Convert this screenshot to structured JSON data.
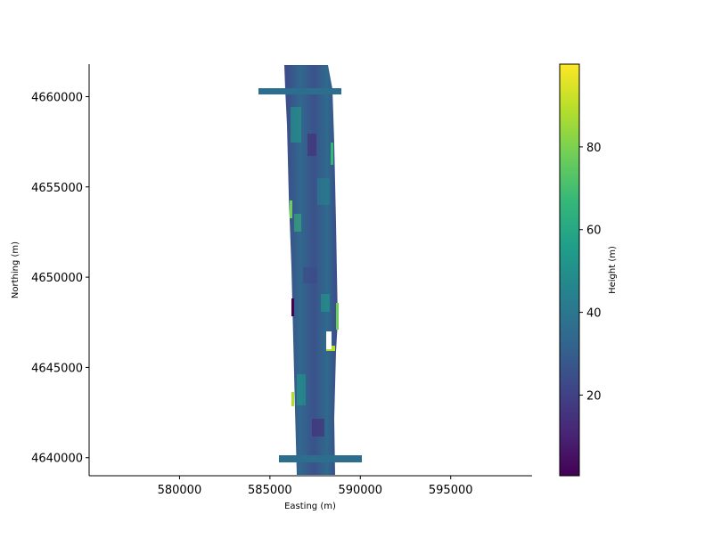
{
  "chart_data": {
    "type": "heatmap",
    "title": "",
    "xlabel": "Easting (m)",
    "ylabel": "Northing (m)",
    "xlim": [
      575000,
      599500
    ],
    "ylim": [
      4639000,
      4661800
    ],
    "xticks": [
      580000,
      585000,
      590000,
      595000
    ],
    "xtick_labels": [
      "580000",
      "585000",
      "590000",
      "595000"
    ],
    "yticks": [
      4640000,
      4645000,
      4650000,
      4655000,
      4660000
    ],
    "ytick_labels": [
      "4640000",
      "4645000",
      "4650000",
      "4655000",
      "4660000"
    ],
    "colorbar": {
      "label": "Height (m)",
      "colormap": "viridis",
      "range": [
        0.5,
        100
      ],
      "ticks": [
        20,
        40,
        60,
        80
      ],
      "tick_labels": [
        "20",
        "40",
        "60",
        "80"
      ]
    },
    "survey_extent": {
      "main_strip": {
        "easting_min": 586000,
        "easting_max": 588800,
        "northing_min": 4639200,
        "northing_max": 4661800
      },
      "north_wing": {
        "easting_min": 584500,
        "easting_max": 589600,
        "northing": 4660300
      },
      "south_wing": {
        "easting_min": 585600,
        "easting_max": 590200,
        "northing": 4640000
      }
    },
    "typical_height_m": 35,
    "grid": false,
    "legend": "colorbar-right"
  },
  "colors": {
    "viridis": [
      "#440154",
      "#482878",
      "#3e4989",
      "#31688e",
      "#26828e",
      "#1f9e89",
      "#35b779",
      "#6ece58",
      "#b5de2b",
      "#fde725"
    ],
    "axis": "#000000"
  }
}
